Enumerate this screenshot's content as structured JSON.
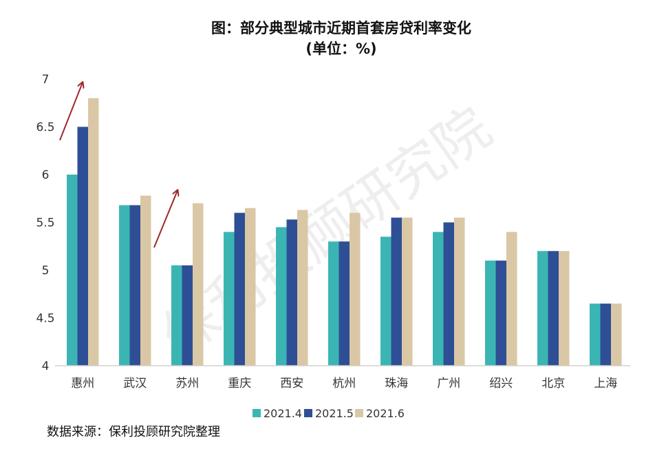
{
  "title": "图：部分典型城市近期首套房贷利率变化",
  "subtitle": "(单位：%)",
  "source": "数据来源：保利投顾研究院整理",
  "watermark": "保利投顾研究院",
  "chart_data": {
    "type": "bar",
    "categories": [
      "惠州",
      "武汉",
      "苏州",
      "重庆",
      "西安",
      "杭州",
      "珠海",
      "广州",
      "绍兴",
      "北京",
      "上海"
    ],
    "series": [
      {
        "name": "2021.4",
        "color": "#3bb5b4",
        "values": [
          6.0,
          5.68,
          5.05,
          5.4,
          5.45,
          5.3,
          5.35,
          5.4,
          5.1,
          5.2,
          4.65
        ]
      },
      {
        "name": "2021.5",
        "color": "#2e4f95",
        "values": [
          6.5,
          5.68,
          5.05,
          5.6,
          5.53,
          5.3,
          5.55,
          5.5,
          5.1,
          5.2,
          4.65
        ]
      },
      {
        "name": "2021.6",
        "color": "#dac7a5",
        "values": [
          6.8,
          5.78,
          5.7,
          5.65,
          5.63,
          5.6,
          5.55,
          5.55,
          5.4,
          5.2,
          4.65
        ]
      }
    ],
    "ylim": [
      4,
      7
    ],
    "yticks": [
      "4",
      "4.5",
      "5",
      "5.5",
      "6",
      "6.5",
      "7"
    ],
    "grid": false,
    "legend": "bottom",
    "annotations": [
      {
        "type": "arrow",
        "near": "惠州",
        "color": "#a0262a"
      },
      {
        "type": "arrow",
        "near": "苏州",
        "color": "#a0262a"
      }
    ]
  }
}
